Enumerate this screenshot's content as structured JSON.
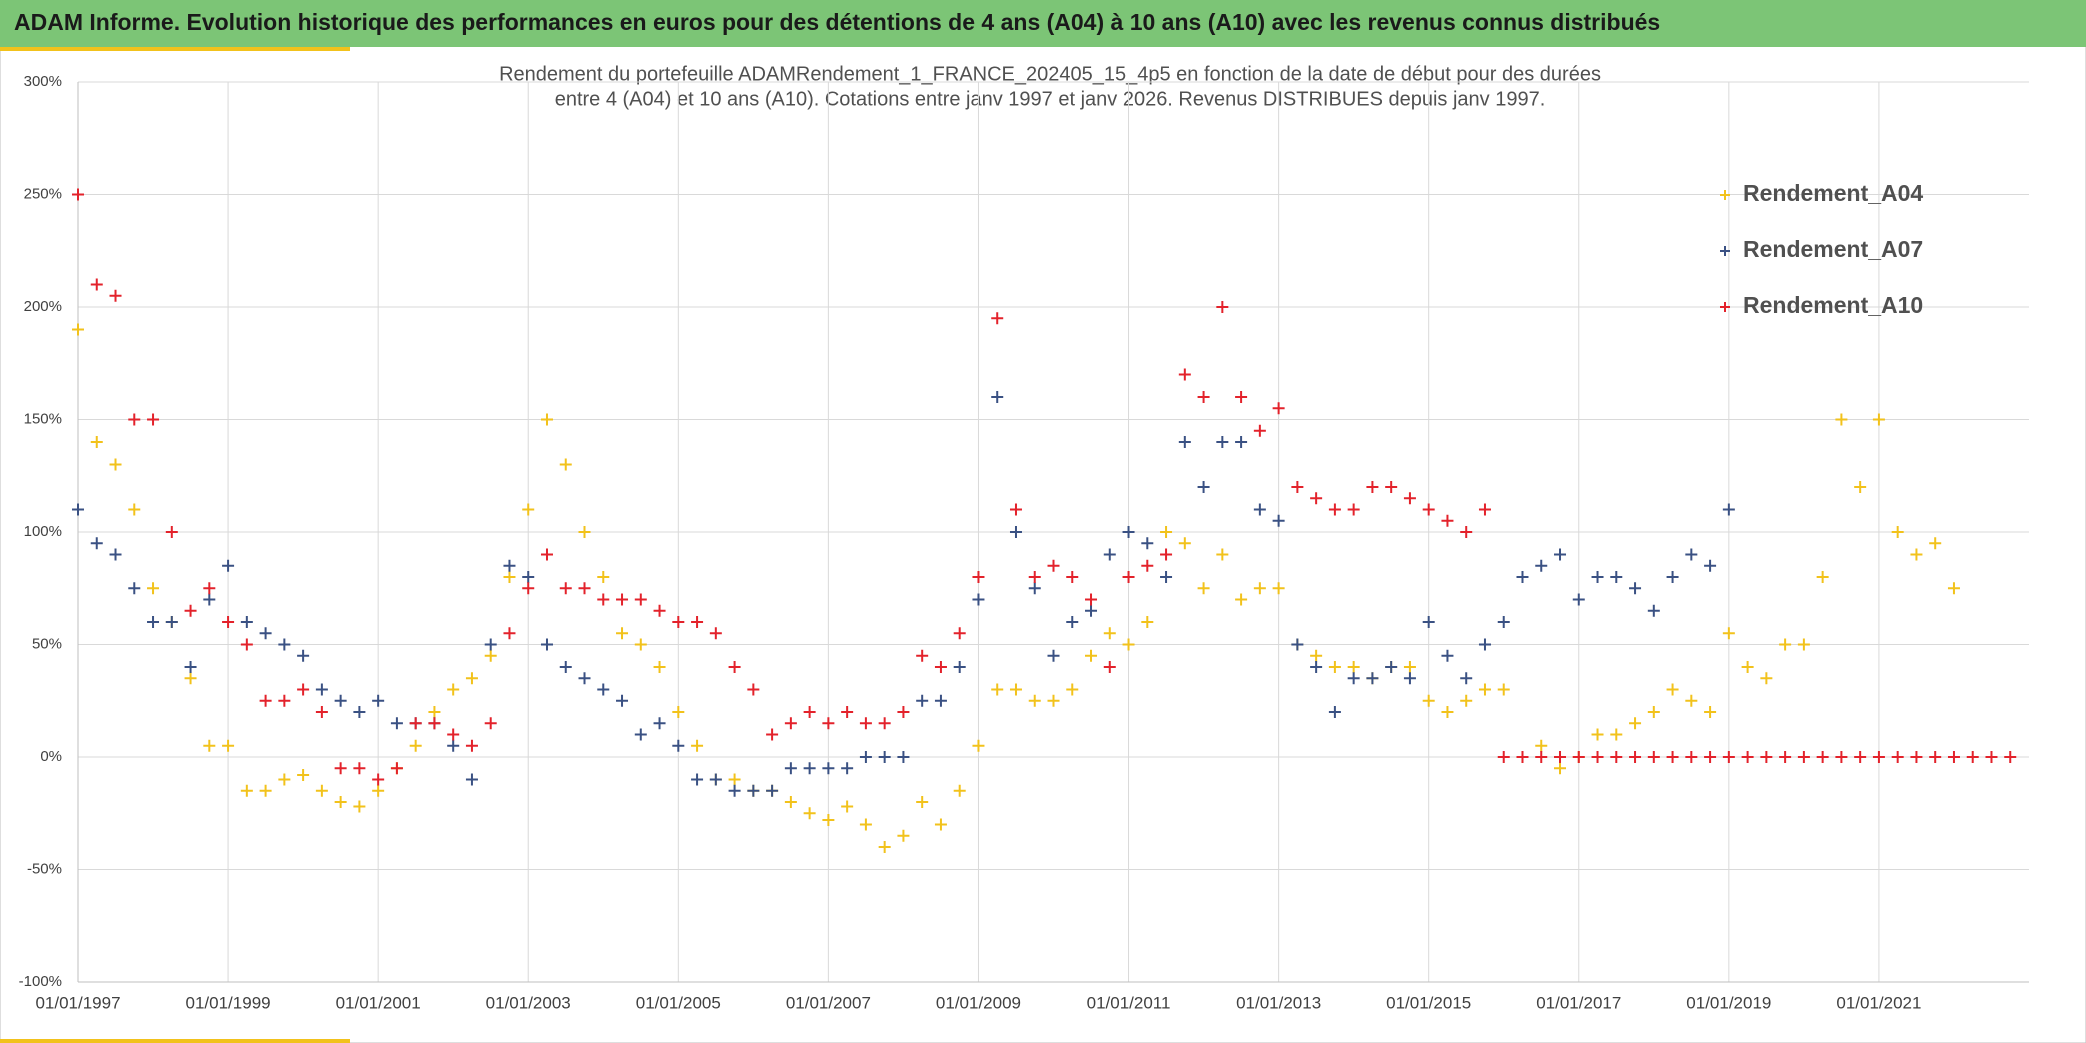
{
  "chart_data": {
    "type": "scatter",
    "title": "ADAM Informe. Evolution historique des performances en euros pour des détentions de 4 ans (A04) à 10 ans (A10) avec les revenus connus distribués",
    "subtitle": [
      "Rendement du portefeuille ADAMRendement_1_FRANCE_202405_15_4p5  en fonction de la date de début pour des durées",
      "entre 4 (A04) et 10 ans (A10). Cotations entre janv 1997 et janv 2026. Revenus DISTRIBUES depuis janv 1997."
    ],
    "x": [
      "01/01/1997",
      "01/04/1997",
      "01/07/1997",
      "01/10/1997",
      "01/01/1998",
      "01/04/1998",
      "01/07/1998",
      "01/10/1998",
      "01/01/1999",
      "01/04/1999",
      "01/07/1999",
      "01/10/1999",
      "01/01/2000",
      "01/04/2000",
      "01/07/2000",
      "01/10/2000",
      "01/01/2001",
      "01/04/2001",
      "01/07/2001",
      "01/10/2001",
      "01/01/2002",
      "01/04/2002",
      "01/07/2002",
      "01/10/2002",
      "01/01/2003",
      "01/04/2003",
      "01/07/2003",
      "01/10/2003",
      "01/01/2004",
      "01/04/2004",
      "01/07/2004",
      "01/10/2004",
      "01/01/2005",
      "01/04/2005",
      "01/07/2005",
      "01/10/2005",
      "01/01/2006",
      "01/04/2006",
      "01/07/2006",
      "01/10/2006",
      "01/01/2007",
      "01/04/2007",
      "01/07/2007",
      "01/10/2007",
      "01/01/2008",
      "01/04/2008",
      "01/07/2008",
      "01/10/2008",
      "01/01/2009",
      "01/04/2009",
      "01/07/2009",
      "01/10/2009",
      "01/01/2010",
      "01/04/2010",
      "01/07/2010",
      "01/10/2010",
      "01/01/2011",
      "01/04/2011",
      "01/07/2011",
      "01/10/2011",
      "01/01/2012",
      "01/04/2012",
      "01/07/2012",
      "01/10/2012",
      "01/01/2013",
      "01/04/2013",
      "01/07/2013",
      "01/10/2013",
      "01/01/2014",
      "01/04/2014",
      "01/07/2014",
      "01/10/2014",
      "01/01/2015",
      "01/04/2015",
      "01/07/2015",
      "01/10/2015",
      "01/01/2016",
      "01/04/2016",
      "01/07/2016",
      "01/10/2016",
      "01/01/2017",
      "01/04/2017",
      "01/07/2017",
      "01/10/2017",
      "01/01/2018",
      "01/04/2018",
      "01/07/2018",
      "01/10/2018",
      "01/01/2019",
      "01/04/2019",
      "01/07/2019",
      "01/10/2019",
      "01/01/2020",
      "01/04/2020",
      "01/07/2020",
      "01/10/2020",
      "01/01/2021",
      "01/04/2021",
      "01/07/2021",
      "01/10/2021",
      "01/01/2022",
      "01/04/2022",
      "01/07/2022",
      "01/10/2022"
    ],
    "series": [
      {
        "name": "Rendement_A04",
        "color": "#f2c21b",
        "values": [
          190,
          140,
          130,
          110,
          75,
          60,
          35,
          5,
          5,
          -15,
          -15,
          -10,
          -8,
          -15,
          -20,
          -22,
          -15,
          -5,
          5,
          20,
          30,
          35,
          45,
          80,
          110,
          150,
          130,
          100,
          80,
          55,
          50,
          40,
          20,
          5,
          -10,
          -10,
          -15,
          -15,
          -20,
          -25,
          -28,
          -22,
          -30,
          -40,
          -35,
          -20,
          -30,
          -15,
          5,
          30,
          30,
          25,
          25,
          30,
          45,
          55,
          50,
          60,
          100,
          95,
          75,
          90,
          70,
          75,
          75,
          50,
          45,
          40,
          40,
          35,
          40,
          40,
          25,
          20,
          25,
          30,
          30,
          0,
          5,
          -5,
          0,
          10,
          10,
          15,
          20,
          30,
          25,
          20,
          55,
          40,
          35,
          50,
          50,
          80,
          150,
          120,
          150,
          100,
          90,
          95,
          75,
          null,
          null,
          null
        ]
      },
      {
        "name": "Rendement_A07",
        "color": "#3a5183",
        "values": [
          110,
          95,
          90,
          75,
          60,
          60,
          40,
          70,
          85,
          60,
          55,
          50,
          45,
          30,
          25,
          20,
          25,
          15,
          15,
          15,
          5,
          -10,
          50,
          85,
          80,
          50,
          40,
          35,
          30,
          25,
          10,
          15,
          5,
          -10,
          -10,
          -15,
          -15,
          -15,
          -5,
          -5,
          -5,
          -5,
          0,
          0,
          0,
          25,
          25,
          40,
          70,
          160,
          100,
          75,
          45,
          60,
          65,
          90,
          100,
          95,
          80,
          140,
          120,
          140,
          140,
          110,
          105,
          50,
          40,
          20,
          35,
          35,
          40,
          35,
          60,
          45,
          35,
          50,
          60,
          80,
          85,
          90,
          70,
          80,
          80,
          75,
          65,
          80,
          90,
          85,
          110,
          null,
          null,
          null,
          null,
          null,
          null,
          null,
          null,
          null,
          null,
          null,
          null,
          null,
          null,
          null
        ]
      },
      {
        "name": "Rendement_A10",
        "color": "#e3222b",
        "values": [
          250,
          210,
          205,
          150,
          150,
          100,
          65,
          75,
          60,
          50,
          25,
          25,
          30,
          20,
          -5,
          -5,
          -10,
          -5,
          15,
          15,
          10,
          5,
          15,
          55,
          75,
          90,
          75,
          75,
          70,
          70,
          70,
          65,
          60,
          60,
          55,
          40,
          30,
          10,
          15,
          20,
          15,
          20,
          15,
          15,
          20,
          45,
          40,
          55,
          80,
          195,
          110,
          80,
          85,
          80,
          70,
          40,
          80,
          85,
          90,
          170,
          160,
          200,
          160,
          145,
          155,
          120,
          115,
          110,
          110,
          120,
          120,
          115,
          110,
          105,
          100,
          110,
          0,
          0,
          0,
          0,
          0,
          0,
          0,
          0,
          0,
          0,
          0,
          0,
          0,
          0,
          0,
          0,
          0,
          0,
          0,
          0,
          0,
          0,
          0,
          0,
          0,
          0,
          0,
          0
        ]
      }
    ],
    "xlim": [
      "01/01/1997",
      "01/01/2023"
    ],
    "xticks": [
      "01/01/1997",
      "01/01/1999",
      "01/01/2001",
      "01/01/2003",
      "01/01/2005",
      "01/01/2007",
      "01/01/2009",
      "01/01/2011",
      "01/01/2013",
      "01/01/2015",
      "01/01/2017",
      "01/01/2019",
      "01/01/2021"
    ],
    "ylim": [
      -100,
      300
    ],
    "yticks": [
      {
        "value": -100,
        "label": "-100%"
      },
      {
        "value": -50,
        "label": "-50%"
      },
      {
        "value": 0,
        "label": "0%"
      },
      {
        "value": 50,
        "label": "50%"
      },
      {
        "value": 100,
        "label": "100%"
      },
      {
        "value": 150,
        "label": "150%"
      },
      {
        "value": 200,
        "label": "200%"
      },
      {
        "value": 250,
        "label": "250%"
      },
      {
        "value": 300,
        "label": "300%"
      }
    ],
    "grid": true,
    "legend": "top-right"
  }
}
